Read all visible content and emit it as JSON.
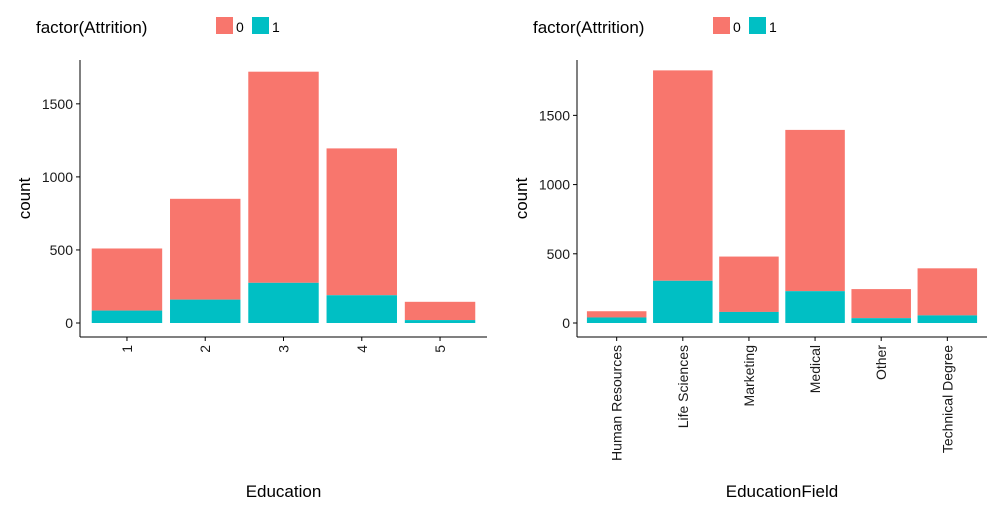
{
  "chart_data": [
    {
      "type": "bar",
      "stacked": true,
      "xlabel": "Education",
      "ylabel": "count",
      "legend": {
        "title": "factor(Attrition)",
        "position": "top-left",
        "entries": [
          {
            "label": "0",
            "color": "#f8766d"
          },
          {
            "label": "1",
            "color": "#00bfc4"
          }
        ]
      },
      "categories": [
        "1",
        "2",
        "3",
        "4",
        "5"
      ],
      "series": [
        {
          "name": "0",
          "color": "#f8766d",
          "values": [
            425,
            690,
            1445,
            1005,
            125
          ]
        },
        {
          "name": "1",
          "color": "#00bfc4",
          "values": [
            85,
            160,
            275,
            190,
            20
          ]
        }
      ],
      "ylim": [
        0,
        1800
      ],
      "yticks": [
        0,
        500,
        1000,
        1500
      ],
      "grid": false,
      "xtick_rotation": -90
    },
    {
      "type": "bar",
      "stacked": true,
      "xlabel": "EducationField",
      "ylabel": "count",
      "legend": {
        "title": "factor(Attrition)",
        "position": "top-left",
        "entries": [
          {
            "label": "0",
            "color": "#f8766d"
          },
          {
            "label": "1",
            "color": "#00bfc4"
          }
        ]
      },
      "categories": [
        "Human Resources",
        "Life Sciences",
        "Marketing",
        "Medical",
        "Other",
        "Technical Degree"
      ],
      "series": [
        {
          "name": "0",
          "color": "#f8766d",
          "values": [
            45,
            1520,
            400,
            1165,
            210,
            340
          ]
        },
        {
          "name": "1",
          "color": "#00bfc4",
          "values": [
            40,
            305,
            80,
            230,
            35,
            55
          ]
        }
      ],
      "ylim": [
        0,
        1900
      ],
      "yticks": [
        0,
        500,
        1000,
        1500
      ],
      "grid": false,
      "xtick_rotation": -90
    }
  ]
}
